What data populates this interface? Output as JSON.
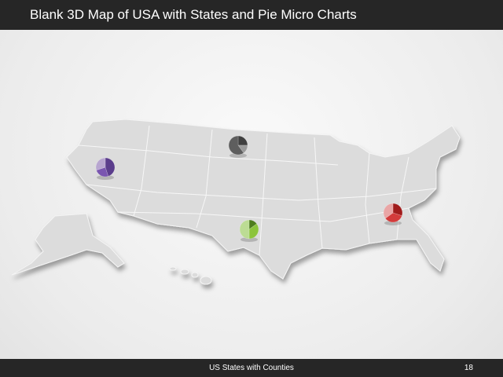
{
  "header": {
    "title": "Blank 3D Map of USA with States and Pie Micro Charts"
  },
  "footer": {
    "label": "US States with Counties",
    "page": "18"
  },
  "map": {
    "fill": "#dcdcdc",
    "border": "#ffffff"
  },
  "pies": [
    {
      "state": "Nevada",
      "colors": [
        "#5b3d8c",
        "#7a56b0",
        "#b8a6d0"
      ],
      "values": [
        45,
        25,
        30
      ]
    },
    {
      "state": "South Dakota",
      "colors": [
        "#3f3f3f",
        "#9a9a9a",
        "#5e5e5e"
      ],
      "values": [
        25,
        15,
        60
      ]
    },
    {
      "state": "Texas",
      "colors": [
        "#4f7d1e",
        "#8cc43c",
        "#bcdc94"
      ],
      "values": [
        15,
        35,
        50
      ]
    },
    {
      "state": "Georgia",
      "colors": [
        "#a01c1c",
        "#d33b3b",
        "#e9a5a5"
      ],
      "values": [
        30,
        35,
        35
      ]
    }
  ]
}
